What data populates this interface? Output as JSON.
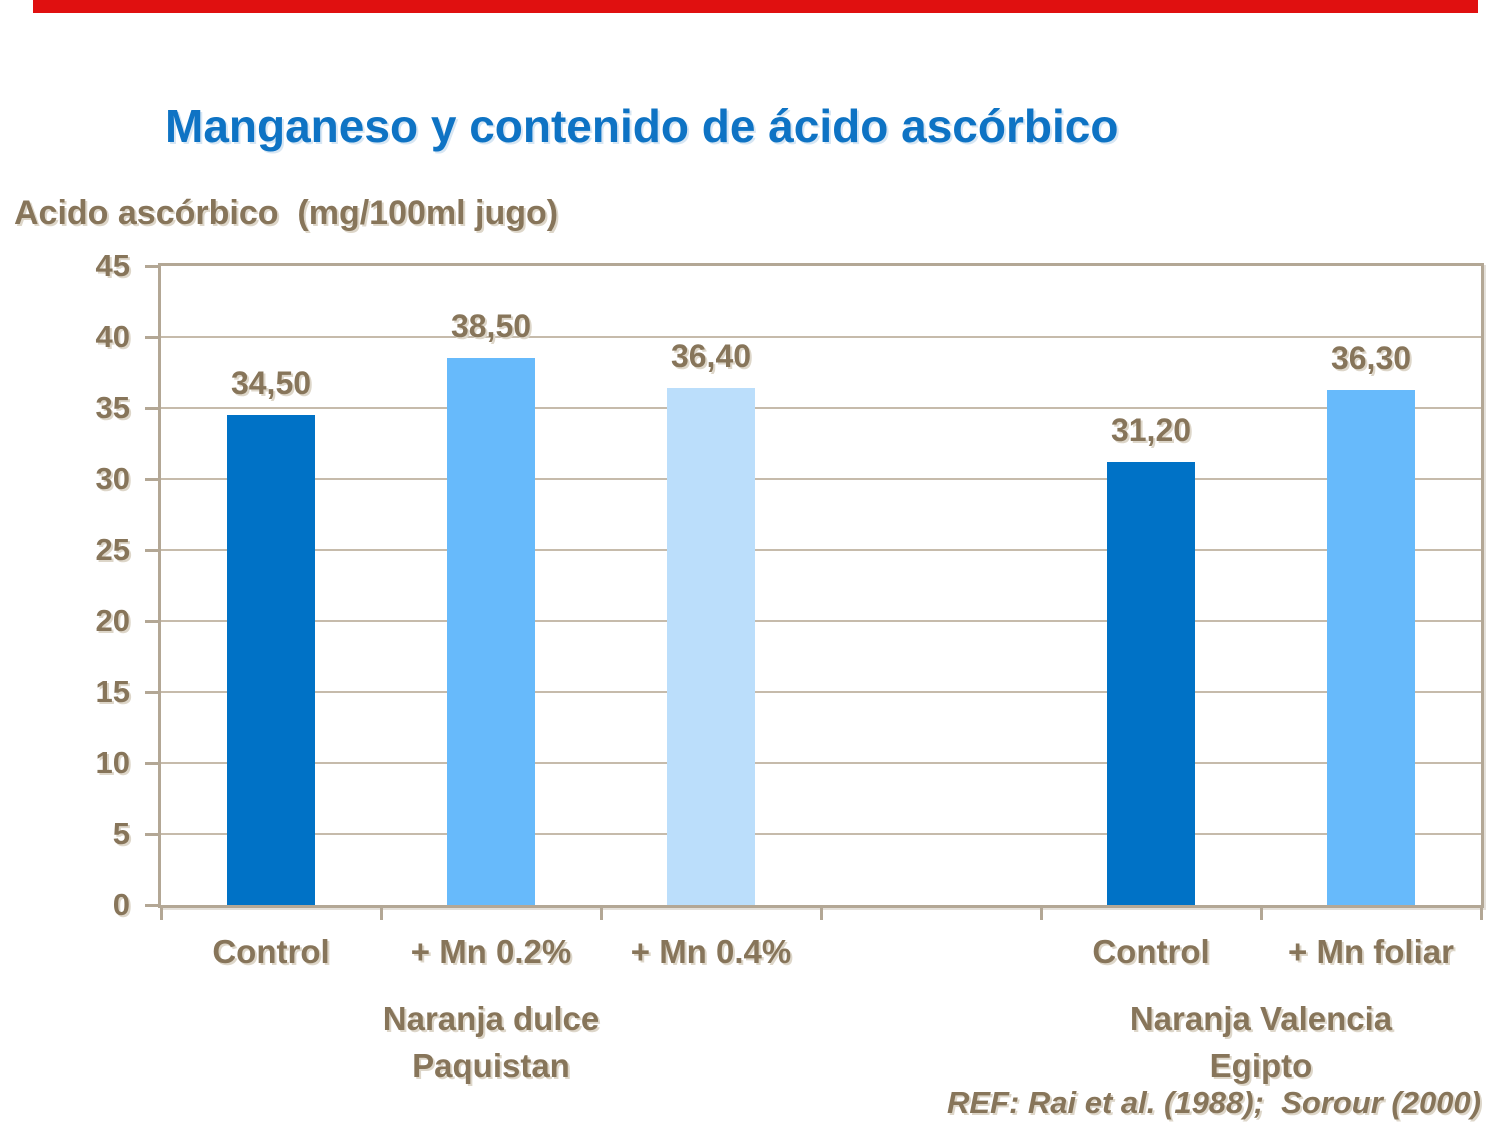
{
  "slide": {
    "title": "Manganeso y contenido de ácido ascórbico",
    "y_axis_title": "Acido ascórbico  (mg/100ml jugo)",
    "reference": "REF: Rai et al. (1988);  Sorour (2000)"
  },
  "colors": {
    "title_blue": "#0E73C4",
    "text_brown": "#87755A",
    "strip_red": "#E01010",
    "grid_tan": "#C6BBAB",
    "border_tan": "#B3A795",
    "bar_dark_blue": "#0072C6",
    "bar_medium_blue": "#67BAFB",
    "bar_light_blue": "#BBDEFB"
  },
  "chart_data": {
    "type": "bar",
    "title": "Manganeso y contenido de ácido ascórbico",
    "xlabel": "",
    "ylabel": "Acido ascórbico (mg/100ml jugo)",
    "ylim": [
      0,
      45
    ],
    "ytick_step": 5,
    "grid": true,
    "legend": false,
    "categories": [
      "Control",
      "+ Mn 0.2%",
      "+ Mn 0.4%",
      "Control",
      "+ Mn foliar"
    ],
    "values": [
      34.5,
      38.5,
      36.4,
      31.2,
      36.3
    ],
    "value_labels": [
      "34,50",
      "38,50",
      "36,40",
      "31,20",
      "36,30"
    ],
    "bar_colors": [
      "#0072C6",
      "#67BAFB",
      "#BBDEFB",
      "#0072C6",
      "#67BAFB"
    ],
    "bar_slots": [
      0,
      1,
      2,
      4,
      5
    ],
    "total_slots": 6,
    "groups": [
      {
        "label_lines": [
          "Naranja dulce",
          "Paquistan"
        ],
        "slot_center": 1.5
      },
      {
        "label_lines": [
          "Naranja Valencia",
          "Egipto"
        ],
        "slot_center": 5
      }
    ],
    "reference": "REF: Rai et al. (1988); Sorour (2000)"
  }
}
